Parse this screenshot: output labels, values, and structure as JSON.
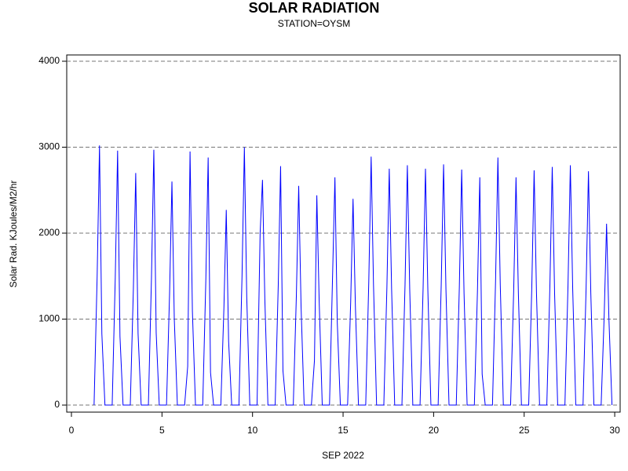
{
  "chart_data": {
    "type": "line",
    "title": "SOLAR RADIATION",
    "subtitle": "STATION=OYSM",
    "x_label": "SEP 2022",
    "y_label": "Solar Rad. KJoules/M2/hr",
    "color": "#0000ff",
    "grid": true,
    "xlim": [
      -0.26,
      30.3
    ],
    "ylim": [
      -82,
      4073
    ],
    "xticks": [
      0,
      5,
      10,
      15,
      20,
      25,
      30
    ],
    "yticks": [
      0,
      1000,
      2000,
      3000,
      4000
    ],
    "x": [
      1.25,
      1.42,
      1.55,
      1.68,
      1.85,
      2.25,
      2.42,
      2.55,
      2.68,
      2.85,
      3.25,
      3.42,
      3.55,
      3.68,
      3.85,
      4.25,
      4.42,
      4.55,
      4.68,
      4.85,
      5.25,
      5.42,
      5.55,
      5.68,
      5.85,
      6.25,
      6.42,
      6.55,
      6.68,
      6.85,
      7.25,
      7.42,
      7.55,
      7.68,
      7.85,
      8.25,
      8.42,
      8.55,
      8.68,
      8.85,
      9.25,
      9.42,
      9.55,
      9.68,
      9.85,
      10.25,
      10.42,
      10.55,
      10.68,
      10.85,
      11.25,
      11.42,
      11.55,
      11.68,
      11.85,
      12.25,
      12.42,
      12.55,
      12.68,
      12.85,
      13.25,
      13.42,
      13.55,
      13.68,
      13.85,
      14.25,
      14.42,
      14.55,
      14.68,
      14.85,
      15.25,
      15.42,
      15.55,
      15.68,
      15.85,
      16.25,
      16.42,
      16.55,
      16.68,
      16.85,
      17.25,
      17.42,
      17.55,
      17.68,
      17.85,
      18.25,
      18.42,
      18.55,
      18.68,
      18.85,
      19.25,
      19.42,
      19.55,
      19.68,
      19.85,
      20.25,
      20.42,
      20.55,
      20.68,
      20.85,
      21.25,
      21.42,
      21.55,
      21.68,
      21.85,
      22.25,
      22.42,
      22.55,
      22.68,
      22.85,
      23.25,
      23.42,
      23.55,
      23.68,
      23.85,
      24.25,
      24.42,
      24.55,
      24.68,
      24.85,
      25.25,
      25.42,
      25.55,
      25.68,
      25.85,
      26.25,
      26.42,
      26.55,
      26.68,
      26.85,
      27.25,
      27.42,
      27.55,
      27.68,
      27.85,
      28.25,
      28.42,
      28.55,
      28.68,
      28.85,
      29.25,
      29.42,
      29.55,
      29.68,
      29.85
    ],
    "values": [
      0,
      1500,
      3020,
      830,
      0,
      0,
      1480,
      2960,
      800,
      0,
      0,
      1350,
      2700,
      830,
      0,
      0,
      1480,
      2970,
      840,
      0,
      0,
      1300,
      2600,
      1000,
      0,
      0,
      450,
      2950,
      1090,
      0,
      0,
      1440,
      2880,
      380,
      0,
      0,
      1130,
      2270,
      740,
      0,
      0,
      1500,
      3000,
      1260,
      0,
      0,
      2000,
      2620,
      1230,
      0,
      0,
      1390,
      2780,
      400,
      0,
      0,
      1270,
      2550,
      1150,
      0,
      0,
      520,
      2440,
      1210,
      0,
      0,
      1500,
      2650,
      960,
      0,
      0,
      1200,
      2400,
      1150,
      0,
      0,
      1440,
      2890,
      1400,
      0,
      0,
      1370,
      2750,
      1350,
      0,
      0,
      1390,
      2790,
      1350,
      0,
      0,
      1370,
      2750,
      1350,
      0,
      0,
      1400,
      2800,
      1350,
      0,
      0,
      1370,
      2740,
      1300,
      0,
      0,
      1320,
      2650,
      360,
      0,
      0,
      1440,
      2880,
      1400,
      0,
      0,
      1320,
      2650,
      1300,
      0,
      0,
      1360,
      2730,
      1300,
      0,
      0,
      1380,
      2770,
      1300,
      0,
      0,
      1390,
      2790,
      1350,
      0,
      0,
      1360,
      2720,
      1300,
      0,
      0,
      1050,
      2110,
      1000,
      0
    ]
  }
}
